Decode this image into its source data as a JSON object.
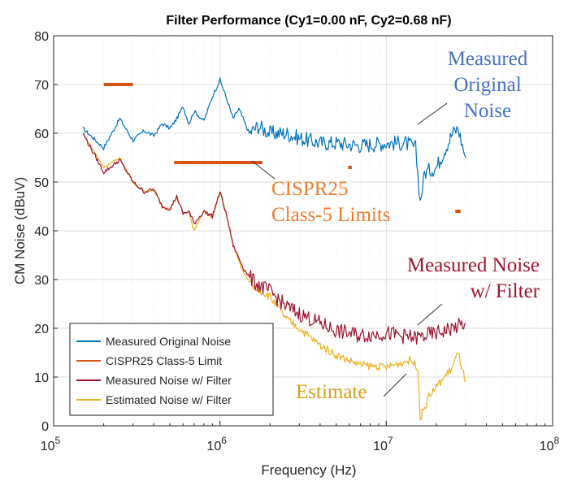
{
  "chart_data": {
    "type": "line",
    "title": "Filter Performance (Cy1=0.00 nF, Cy2=0.68 nF)",
    "xlabel": "Frequency (Hz)",
    "ylabel": "CM Noise (dBuV)",
    "xscale": "log",
    "xlim": [
      100000,
      100000000
    ],
    "ylim": [
      0,
      80
    ],
    "grid": true,
    "x_ticks": [
      {
        "base": "10",
        "exp": "5",
        "value": 100000
      },
      {
        "base": "10",
        "exp": "6",
        "value": 1000000
      },
      {
        "base": "10",
        "exp": "7",
        "value": 10000000
      },
      {
        "base": "10",
        "exp": "8",
        "value": 100000000
      }
    ],
    "y_ticks": [
      {
        "label": "0",
        "value": 0
      },
      {
        "label": "10",
        "value": 10
      },
      {
        "label": "20",
        "value": 20
      },
      {
        "label": "30",
        "value": 30
      },
      {
        "label": "40",
        "value": 40
      },
      {
        "label": "50",
        "value": 50
      },
      {
        "label": "60",
        "value": 60
      },
      {
        "label": "70",
        "value": 70
      },
      {
        "label": "80",
        "value": 80
      }
    ],
    "legend_position": "bottom-left",
    "series": [
      {
        "name": "Measured Original Noise",
        "color": "#0072BD",
        "x": [
          150000,
          200000,
          250000,
          300000,
          350000,
          400000,
          450000,
          500000,
          550000,
          600000,
          650000,
          700000,
          800000,
          900000,
          1000000,
          1100000,
          1200000,
          1300000,
          1500000,
          1700000,
          2000000,
          2500000,
          3000000,
          4000000,
          5000000,
          7000000,
          10000000,
          13000000,
          15000000,
          16000000,
          17000000,
          20000000,
          25000000,
          27000000,
          30000000
        ],
        "values": [
          61,
          57,
          63,
          58.5,
          60.5,
          59.5,
          62,
          61,
          63,
          65.5,
          62,
          64.5,
          62.5,
          67.5,
          71,
          67,
          63,
          65,
          60,
          61.5,
          60,
          60,
          59,
          58,
          58,
          57.5,
          58,
          58,
          57,
          46,
          52,
          53,
          60,
          61,
          55
        ]
      },
      {
        "name": "CISPR25 Class-5 Limit",
        "color": "#D95319",
        "segments": [
          {
            "x": [
              200000,
              300000
            ],
            "y": [
              70,
              70
            ]
          },
          {
            "x": [
              530000,
              1800000
            ],
            "y": [
              54,
              54
            ]
          },
          {
            "x": [
              5900000,
              6200000
            ],
            "y": [
              53,
              53
            ]
          },
          {
            "x": [
              26000000,
              28000000
            ],
            "y": [
              44,
              44
            ]
          }
        ]
      },
      {
        "name": "Measured Noise w/ Filter",
        "color": "#A2142F",
        "x": [
          150000,
          200000,
          250000,
          300000,
          350000,
          400000,
          450000,
          500000,
          550000,
          600000,
          650000,
          700000,
          800000,
          900000,
          1000000,
          1100000,
          1200000,
          1400000,
          1600000,
          2000000,
          2500000,
          3000000,
          4000000,
          5000000,
          7000000,
          10000000,
          15000000,
          20000000,
          25000000,
          30000000
        ],
        "values": [
          60,
          52,
          54.5,
          50,
          48,
          48.5,
          45,
          44.5,
          47,
          43.5,
          44,
          41.5,
          44,
          43,
          48,
          43,
          37,
          32,
          29.5,
          27.5,
          24.5,
          23,
          21,
          19.5,
          18.5,
          19,
          18,
          19,
          20,
          21
        ]
      },
      {
        "name": "Estimated Noise w/ Filter",
        "color": "#EDB120",
        "x": [
          150000,
          200000,
          250000,
          300000,
          350000,
          400000,
          450000,
          500000,
          550000,
          600000,
          650000,
          700000,
          800000,
          900000,
          1000000,
          1100000,
          1200000,
          1400000,
          1600000,
          2000000,
          2500000,
          3000000,
          4000000,
          5000000,
          7000000,
          10000000,
          14000000,
          15500000,
          16000000,
          18000000,
          20000000,
          25000000,
          27000000,
          30000000
        ],
        "values": [
          60,
          53,
          55,
          50,
          48,
          48.5,
          45,
          44.5,
          47,
          43.5,
          44,
          40,
          44,
          42.5,
          48,
          43,
          37,
          31,
          28.5,
          26.5,
          22,
          20,
          16.5,
          14.5,
          12.5,
          12,
          13.5,
          12,
          1.5,
          6,
          8,
          12,
          15,
          9
        ]
      }
    ],
    "annotations": [
      {
        "text": "Measured",
        "color": "#4472C4"
      },
      {
        "text": "Original",
        "color": "#4472C4"
      },
      {
        "text": "Noise",
        "color": "#4472C4"
      },
      {
        "text": "CISPR25",
        "color": "#ED7D31"
      },
      {
        "text": "Class-5 Limits",
        "color": "#ED7D31"
      },
      {
        "text": "Measured Noise",
        "color": "#A2142F"
      },
      {
        "text": "w/ Filter",
        "color": "#A2142F"
      },
      {
        "text": "Estimate",
        "color": "#D4A017"
      }
    ]
  }
}
